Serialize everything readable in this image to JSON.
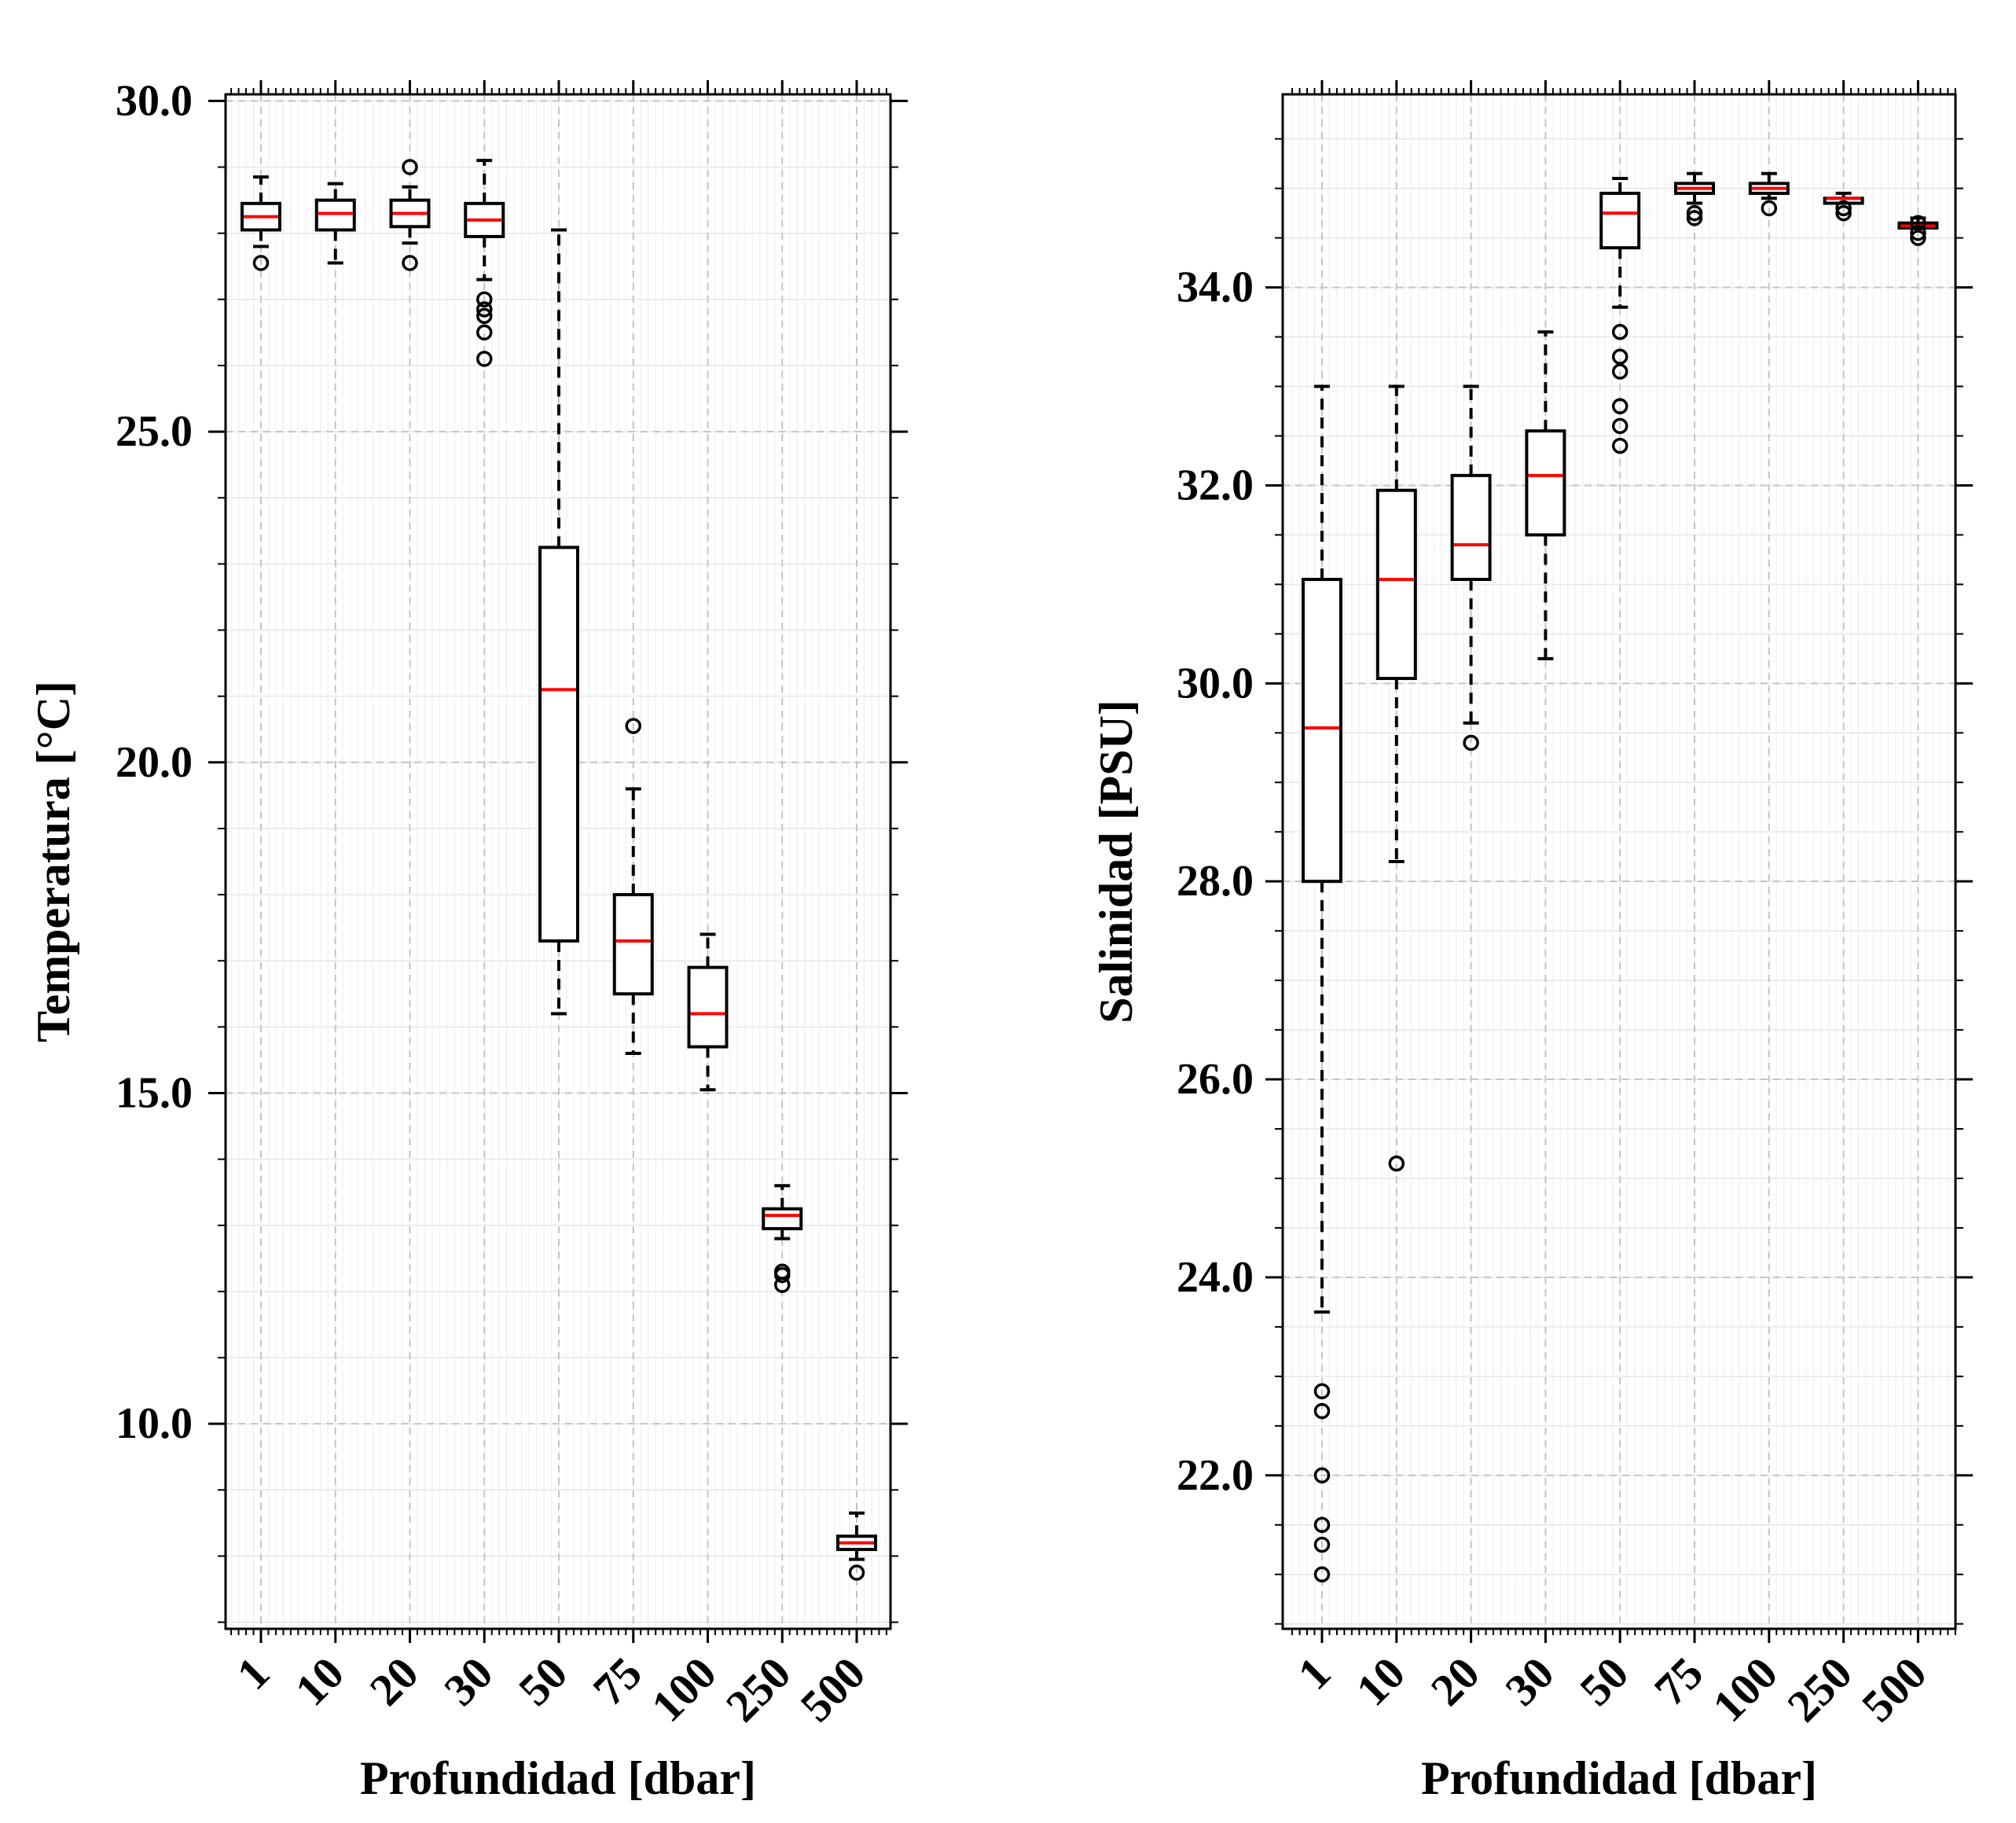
{
  "chart_data": [
    {
      "type": "box",
      "title": "",
      "xlabel": "Profundidad [dbar]",
      "ylabel": "Temperatura [°C]",
      "categories": [
        "1",
        "10",
        "20",
        "30",
        "50",
        "75",
        "100",
        "250",
        "500"
      ],
      "ylim": [
        6.9,
        30.1
      ],
      "yticks": [
        10.0,
        15.0,
        20.0,
        25.0,
        30.0
      ],
      "ytick_labels": [
        "10.0",
        "15.0",
        "20.0",
        "25.0",
        "30.0"
      ],
      "grid": true,
      "median_color": "#ff0000",
      "boxes": [
        {
          "category": "1",
          "whisker_low": 27.8,
          "q1": 28.05,
          "median": 28.25,
          "q3": 28.45,
          "whisker_high": 28.85,
          "outliers": [
            27.55
          ]
        },
        {
          "category": "10",
          "whisker_low": 27.55,
          "q1": 28.05,
          "median": 28.3,
          "q3": 28.5,
          "whisker_high": 28.75,
          "outliers": []
        },
        {
          "category": "20",
          "whisker_low": 27.85,
          "q1": 28.1,
          "median": 28.3,
          "q3": 28.5,
          "whisker_high": 28.7,
          "outliers": [
            29.0,
            27.55
          ]
        },
        {
          "category": "30",
          "whisker_low": 27.3,
          "q1": 27.95,
          "median": 28.2,
          "q3": 28.45,
          "whisker_high": 29.1,
          "outliers": [
            27.0,
            26.85,
            26.75,
            26.5,
            26.1
          ]
        },
        {
          "category": "50",
          "whisker_low": 16.2,
          "q1": 17.3,
          "median": 21.1,
          "q3": 23.25,
          "whisker_high": 28.05,
          "outliers": []
        },
        {
          "category": "75",
          "whisker_low": 15.6,
          "q1": 16.5,
          "median": 17.3,
          "q3": 18.0,
          "whisker_high": 19.6,
          "outliers": [
            20.55
          ]
        },
        {
          "category": "100",
          "whisker_low": 15.05,
          "q1": 15.7,
          "median": 16.2,
          "q3": 16.9,
          "whisker_high": 17.4,
          "outliers": []
        },
        {
          "category": "250",
          "whisker_low": 12.8,
          "q1": 12.95,
          "median": 13.15,
          "q3": 13.25,
          "whisker_high": 13.6,
          "outliers": [
            12.3,
            12.25,
            12.1
          ]
        },
        {
          "category": "500",
          "whisker_low": 7.95,
          "q1": 8.1,
          "median": 8.2,
          "q3": 8.3,
          "whisker_high": 8.65,
          "outliers": [
            7.75
          ]
        }
      ]
    },
    {
      "type": "box",
      "title": "",
      "xlabel": "Profundidad [dbar]",
      "ylabel": "Salinidad [PSU]",
      "categories": [
        "1",
        "10",
        "20",
        "30",
        "50",
        "75",
        "100",
        "250",
        "500"
      ],
      "ylim": [
        20.45,
        35.95
      ],
      "yticks": [
        22.0,
        24.0,
        26.0,
        28.0,
        30.0,
        32.0,
        34.0
      ],
      "ytick_labels": [
        "22.0",
        "24.0",
        "26.0",
        "28.0",
        "30.0",
        "32.0",
        "34.0"
      ],
      "grid": true,
      "median_color": "#ff0000",
      "boxes": [
        {
          "category": "1",
          "whisker_low": 23.65,
          "q1": 28.0,
          "median": 29.55,
          "q3": 31.05,
          "whisker_high": 33.0,
          "outliers": [
            22.85,
            22.65,
            22.0,
            21.5,
            21.3,
            21.0
          ]
        },
        {
          "category": "10",
          "whisker_low": 28.2,
          "q1": 30.05,
          "median": 31.05,
          "q3": 31.95,
          "whisker_high": 33.0,
          "outliers": [
            25.15
          ]
        },
        {
          "category": "20",
          "whisker_low": 29.6,
          "q1": 31.05,
          "median": 31.4,
          "q3": 32.1,
          "whisker_high": 33.0,
          "outliers": [
            29.4
          ]
        },
        {
          "category": "30",
          "whisker_low": 30.25,
          "q1": 31.5,
          "median": 32.1,
          "q3": 32.55,
          "whisker_high": 33.55,
          "outliers": []
        },
        {
          "category": "50",
          "whisker_low": 33.8,
          "q1": 34.4,
          "median": 34.75,
          "q3": 34.95,
          "whisker_high": 35.1,
          "outliers": [
            33.55,
            33.3,
            33.15,
            32.8,
            32.6,
            32.4
          ]
        },
        {
          "category": "75",
          "whisker_low": 34.85,
          "q1": 34.95,
          "median": 35.0,
          "q3": 35.05,
          "whisker_high": 35.15,
          "outliers": [
            34.75,
            34.7
          ]
        },
        {
          "category": "100",
          "whisker_low": 34.9,
          "q1": 34.95,
          "median": 35.0,
          "q3": 35.05,
          "whisker_high": 35.15,
          "outliers": [
            34.8
          ]
        },
        {
          "category": "250",
          "whisker_low": 34.85,
          "q1": 34.85,
          "median": 34.9,
          "q3": 34.9,
          "whisker_high": 34.95,
          "outliers": [
            34.8,
            34.75
          ]
        },
        {
          "category": "500",
          "whisker_low": 34.6,
          "q1": 34.6,
          "median": 34.62,
          "q3": 34.65,
          "whisker_high": 34.7,
          "outliers": [
            34.55,
            34.5,
            34.65
          ]
        }
      ]
    }
  ]
}
